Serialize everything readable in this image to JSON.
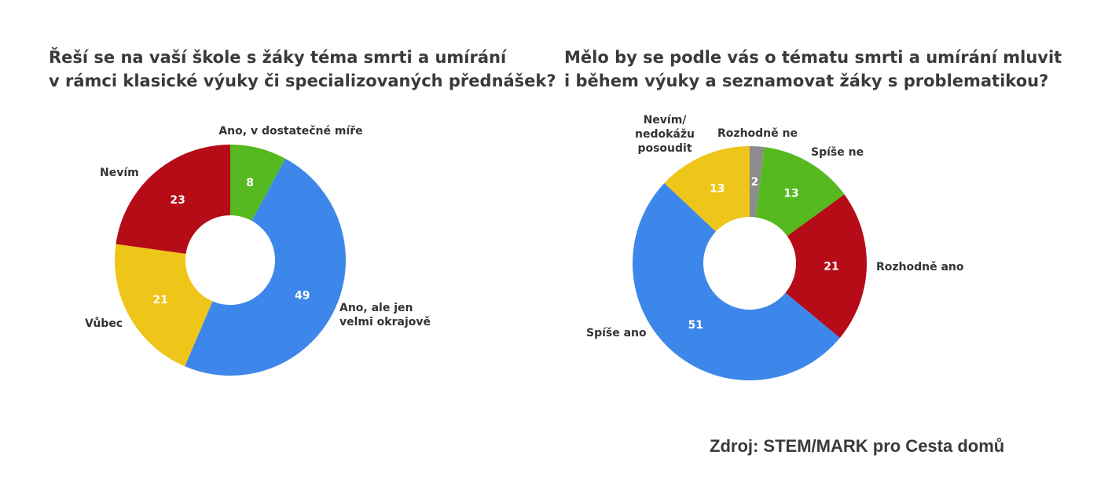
{
  "source": "Zdroj: STEM/MARK pro Cesta domů",
  "chart_data": [
    {
      "type": "pie",
      "title_lines": [
        "Řeší se na vaší škole s žáky téma smrti a umírání",
        "v rámci klasické výuky či specializovaných přednášek?"
      ],
      "slices": [
        {
          "label": "Ano, v dostatečné míře",
          "value": 8,
          "color": "#56b91f"
        },
        {
          "label": "Ano, ale jen velmi okrajově",
          "value": 49,
          "color": "#3d87ea"
        },
        {
          "label": "Vůbec",
          "value": 21,
          "color": "#eec519"
        },
        {
          "label": "Nevím",
          "value": 23,
          "color": "#b50c18"
        }
      ]
    },
    {
      "type": "pie",
      "title_lines": [
        "Mělo by se podle vás o tématu smrti a umírání mluvit",
        "i během výuky a seznamovat žáky s problematikou?"
      ],
      "slices": [
        {
          "label": "Rozhodně ne",
          "value": 2,
          "color": "#8c8c8c"
        },
        {
          "label": "Spíše ne",
          "value": 13,
          "color": "#56b91f"
        },
        {
          "label": "Rozhodně ano",
          "value": 21,
          "color": "#b50c18"
        },
        {
          "label": "Spíše ano",
          "value": 51,
          "color": "#3d87ea"
        },
        {
          "label": "Nevím/ nedokážu posoudit",
          "value": 13,
          "color": "#eec519"
        }
      ]
    }
  ]
}
